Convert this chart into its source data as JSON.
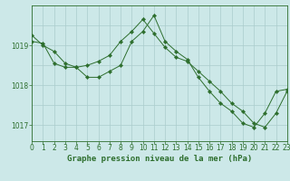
{
  "title": "Graphe pression niveau de la mer (hPa)",
  "bg_color": "#cce8e8",
  "grid_color": "#aacccc",
  "line_color": "#2d6e2d",
  "series1": [
    1019.25,
    1019.0,
    1018.85,
    1018.55,
    1018.45,
    1018.2,
    1018.2,
    1018.35,
    1018.5,
    1019.1,
    1019.35,
    1019.75,
    1019.1,
    1018.85,
    1018.65,
    1018.2,
    1017.85,
    1017.55,
    1017.35,
    1017.05,
    1016.95,
    1017.3,
    1017.85,
    1017.9
  ],
  "series2": [
    1019.1,
    1019.05,
    1018.55,
    1018.45,
    1018.45,
    1018.5,
    1018.6,
    1018.75,
    1019.1,
    1019.35,
    1019.65,
    1019.3,
    1018.95,
    1018.7,
    1018.6,
    1018.35,
    1018.1,
    1017.85,
    1017.55,
    1017.35,
    1017.05,
    1016.95,
    1017.3,
    1017.85
  ],
  "xlim": [
    0,
    23
  ],
  "ylim": [
    1016.6,
    1020.0
  ],
  "yticks": [
    1017,
    1018,
    1019
  ],
  "xticks": [
    0,
    1,
    2,
    3,
    4,
    5,
    6,
    7,
    8,
    9,
    10,
    11,
    12,
    13,
    14,
    15,
    16,
    17,
    18,
    19,
    20,
    21,
    22,
    23
  ],
  "tick_fontsize": 5.5,
  "title_fontsize": 6.5
}
